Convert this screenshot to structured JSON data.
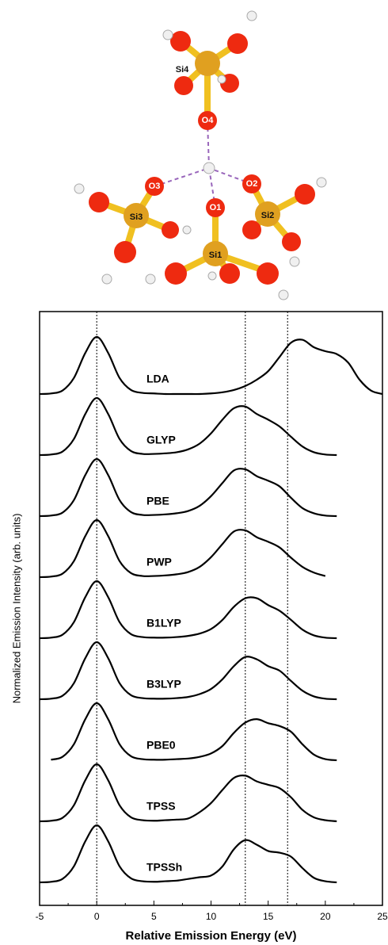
{
  "molecule": {
    "labels": [
      "Si4",
      "O4",
      "O3",
      "O2",
      "O1",
      "Si3",
      "Si2",
      "Si1"
    ]
  },
  "chart_data": {
    "type": "line",
    "xlabel": "Relative Emission Energy (eV)",
    "ylabel": "Normalized Emission Intensity (arb. units)",
    "xlim": [
      -5,
      25
    ],
    "xticks": [
      -5,
      0,
      5,
      10,
      15,
      20,
      25
    ],
    "vlines": [
      0,
      13,
      16.7
    ],
    "x": [
      -5,
      -4,
      -3,
      -2,
      -1,
      0,
      1,
      2,
      3,
      4,
      5,
      6,
      7,
      8,
      9,
      10,
      11,
      12,
      13,
      14,
      15,
      16,
      17,
      18,
      19,
      20,
      21,
      22,
      23,
      24,
      25
    ],
    "series": [
      {
        "name": "LDA",
        "color": "#000000",
        "values": [
          0,
          0.01,
          0.06,
          0.28,
          0.72,
          1,
          0.72,
          0.28,
          0.07,
          0.02,
          0.01,
          0,
          0,
          0,
          0,
          0.01,
          0.03,
          0.07,
          0.14,
          0.25,
          0.4,
          0.65,
          0.9,
          0.95,
          0.82,
          0.75,
          0.7,
          0.55,
          0.25,
          0.06,
          0
        ]
      },
      {
        "name": "GLYP",
        "color": "#000000",
        "values": [
          0,
          0.01,
          0.06,
          0.28,
          0.72,
          1,
          0.72,
          0.28,
          0.07,
          0.02,
          0.02,
          0.03,
          0.05,
          0.1,
          0.2,
          0.38,
          0.62,
          0.82,
          0.85,
          0.72,
          0.62,
          0.5,
          0.32,
          0.15,
          0.05,
          0.01,
          0,
          null,
          null,
          null,
          null
        ]
      },
      {
        "name": "PBE",
        "color": "#000000",
        "values": [
          0,
          0.01,
          0.06,
          0.28,
          0.72,
          1,
          0.72,
          0.28,
          0.07,
          0.02,
          0.02,
          0.03,
          0.05,
          0.09,
          0.18,
          0.35,
          0.58,
          0.8,
          0.82,
          0.7,
          0.62,
          0.52,
          0.32,
          0.14,
          0.05,
          0.01,
          0,
          null,
          null,
          null,
          null
        ]
      },
      {
        "name": "PWP",
        "color": "#000000",
        "values": [
          0,
          0.01,
          0.06,
          0.28,
          0.72,
          1,
          0.72,
          0.28,
          0.07,
          0.02,
          0.02,
          0.03,
          0.05,
          0.09,
          0.18,
          0.35,
          0.58,
          0.8,
          0.82,
          0.7,
          0.62,
          0.52,
          0.34,
          0.18,
          0.08,
          0.02,
          null,
          null,
          null,
          null,
          null
        ]
      },
      {
        "name": "B1LYP",
        "color": "#000000",
        "values": [
          0,
          0.01,
          0.06,
          0.28,
          0.72,
          1,
          0.72,
          0.28,
          0.07,
          0.02,
          0.01,
          0.01,
          0.02,
          0.04,
          0.08,
          0.16,
          0.32,
          0.55,
          0.7,
          0.7,
          0.58,
          0.48,
          0.32,
          0.15,
          0.05,
          0.01,
          0,
          null,
          null,
          null,
          null
        ]
      },
      {
        "name": "B3LYP",
        "color": "#000000",
        "values": [
          0,
          0.01,
          0.06,
          0.28,
          0.72,
          1,
          0.72,
          0.28,
          0.07,
          0.02,
          0.01,
          0.01,
          0.02,
          0.04,
          0.09,
          0.18,
          0.35,
          0.58,
          0.74,
          0.7,
          0.58,
          0.5,
          0.32,
          0.15,
          0.05,
          0.01,
          0,
          null,
          null,
          null,
          null
        ]
      },
      {
        "name": "PBE0",
        "color": "#000000",
        "values": [
          null,
          0.01,
          0.06,
          0.28,
          0.72,
          1,
          0.72,
          0.28,
          0.07,
          0.02,
          0.01,
          0.01,
          0.02,
          0.03,
          0.06,
          0.12,
          0.25,
          0.48,
          0.66,
          0.72,
          0.65,
          0.6,
          0.5,
          0.28,
          0.1,
          0.02,
          0,
          null,
          null,
          null,
          null
        ]
      },
      {
        "name": "TPSS",
        "color": "#000000",
        "values": [
          0,
          0.01,
          0.06,
          0.28,
          0.72,
          1,
          0.72,
          0.28,
          0.07,
          0.02,
          0.01,
          0.02,
          0.03,
          0.05,
          0.16,
          0.32,
          0.55,
          0.76,
          0.8,
          0.7,
          0.64,
          0.58,
          0.42,
          0.2,
          0.07,
          0.02,
          0,
          null,
          null,
          null,
          null
        ]
      },
      {
        "name": "TPSSh",
        "color": "#000000",
        "values": [
          0,
          0.01,
          0.06,
          0.28,
          0.72,
          1,
          0.72,
          0.28,
          0.07,
          0.02,
          0.01,
          0.02,
          0.03,
          0.06,
          0.09,
          0.12,
          0.28,
          0.58,
          0.74,
          0.66,
          0.55,
          0.52,
          0.45,
          0.25,
          0.08,
          0.02,
          0,
          null,
          null,
          null,
          null
        ]
      }
    ]
  }
}
